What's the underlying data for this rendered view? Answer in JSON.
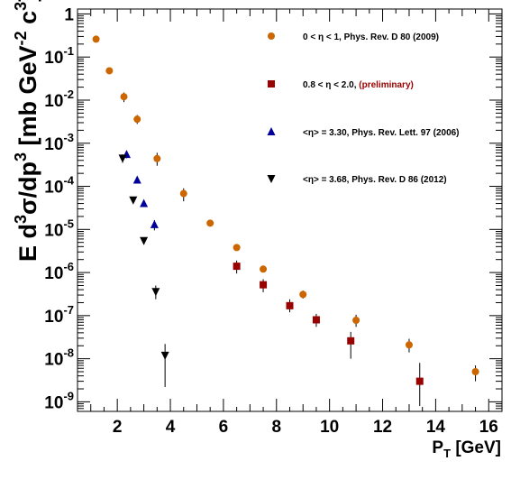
{
  "chart_data": {
    "type": "scatter",
    "title": "",
    "xlabel": "P_T [GeV]",
    "ylabel": "E d^3σ/dp^3 [mb GeV^-2 c^3]",
    "xlabel_parts": {
      "main": "P",
      "sub": "T",
      "unit": "[GeV]"
    },
    "ylabel_parts": {
      "p1": "E d",
      "s1": "3",
      "p2": "σ/dp",
      "s2": "3",
      "p3": " [mb GeV",
      "s3": "-2",
      "p4": " c",
      "s4": "3",
      "p5": "]"
    },
    "xlim": [
      0.5,
      16.5
    ],
    "ylim": [
      6e-10,
      1.3
    ],
    "y_scale": "log",
    "grid": false,
    "legend_position": "top-right",
    "x_ticks": [
      2,
      4,
      6,
      8,
      10,
      12,
      14,
      16
    ],
    "y_ticks": [
      {
        "value": 1e-09,
        "base": "10",
        "exp": "-9"
      },
      {
        "value": 1e-08,
        "base": "10",
        "exp": "-8"
      },
      {
        "value": 1e-07,
        "base": "10",
        "exp": "-7"
      },
      {
        "value": 1e-06,
        "base": "10",
        "exp": "-6"
      },
      {
        "value": 1e-05,
        "base": "10",
        "exp": "-5"
      },
      {
        "value": 0.0001,
        "base": "10",
        "exp": "-4"
      },
      {
        "value": 0.001,
        "base": "10",
        "exp": "-3"
      },
      {
        "value": 0.01,
        "base": "10",
        "exp": "-2"
      },
      {
        "value": 0.1,
        "base": "10",
        "exp": "-1"
      },
      {
        "value": 1,
        "base": "1",
        "exp": ""
      }
    ],
    "series": [
      {
        "name": "0 < η < 1, Phys. Rev. D 80 (2009)",
        "name_parts": [
          "0 < η < 1, Phys. Rev. D 80 (2009)",
          ""
        ],
        "marker": "circle",
        "color": "#cc6600",
        "points": [
          {
            "x": 1.2,
            "y": 0.26,
            "lo": 0.24,
            "hi": 0.28
          },
          {
            "x": 1.7,
            "y": 0.048,
            "lo": 0.044,
            "hi": 0.052
          },
          {
            "x": 2.25,
            "y": 0.012,
            "lo": 0.009,
            "hi": 0.015
          },
          {
            "x": 2.75,
            "y": 0.0036,
            "lo": 0.0028,
            "hi": 0.0045
          },
          {
            "x": 3.5,
            "y": 0.00044,
            "lo": 0.0003,
            "hi": 0.0006
          },
          {
            "x": 4.5,
            "y": 6.8e-05,
            "lo": 4.5e-05,
            "hi": 9e-05
          },
          {
            "x": 5.5,
            "y": 1.4e-05,
            "lo": 1.3e-05,
            "hi": 1.5e-05
          },
          {
            "x": 6.5,
            "y": 3.8e-06,
            "lo": 3.5e-06,
            "hi": 4.2e-06
          },
          {
            "x": 7.5,
            "y": 1.2e-06,
            "lo": 1.1e-06,
            "hi": 1.3e-06
          },
          {
            "x": 9.0,
            "y": 3.1e-07,
            "lo": 2.5e-07,
            "hi": 3.8e-07
          },
          {
            "x": 11.0,
            "y": 7.8e-08,
            "lo": 5.5e-08,
            "hi": 1.05e-07
          },
          {
            "x": 13.0,
            "y": 2.1e-08,
            "lo": 1.4e-08,
            "hi": 2.9e-08
          },
          {
            "x": 15.5,
            "y": 5e-09,
            "lo": 3e-09,
            "hi": 7e-09
          }
        ]
      },
      {
        "name": "0.8 < η < 2.0, (preliminary)",
        "name_parts": [
          "0.8 < η < 2.0, ",
          "(preliminary)"
        ],
        "marker": "square",
        "color": "#990000",
        "points": [
          {
            "x": 6.5,
            "y": 1.4e-06,
            "lo": 9.5e-07,
            "hi": 1.9e-06
          },
          {
            "x": 7.5,
            "y": 5.2e-07,
            "lo": 3.5e-07,
            "hi": 7e-07
          },
          {
            "x": 8.5,
            "y": 1.7e-07,
            "lo": 1.2e-07,
            "hi": 2.4e-07
          },
          {
            "x": 9.5,
            "y": 8e-08,
            "lo": 5.5e-08,
            "hi": 1.1e-07
          },
          {
            "x": 10.8,
            "y": 2.6e-08,
            "lo": 1e-08,
            "hi": 4.2e-08
          },
          {
            "x": 13.4,
            "y": 3e-09,
            "lo": 8e-10,
            "hi": 8e-09
          }
        ]
      },
      {
        "name": "<η> = 3.30, Phys. Rev. Lett. 97 (2006)",
        "name_parts": [
          "<η> = 3.30, Phys. Rev. Lett. 97 (2006)",
          ""
        ],
        "marker": "triangle-up",
        "color": "#000099",
        "points": [
          {
            "x": 2.35,
            "y": 0.00055,
            "lo": 0.00045,
            "hi": 0.00065
          },
          {
            "x": 2.75,
            "y": 0.00014,
            "lo": 0.00012,
            "hi": 0.00016
          },
          {
            "x": 3.0,
            "y": 4e-05,
            "lo": 3.4e-05,
            "hi": 4.6e-05
          },
          {
            "x": 3.4,
            "y": 1.3e-05,
            "lo": 9.5e-06,
            "hi": 1.65e-05
          }
        ]
      },
      {
        "name": "<η> = 3.68, Phys. Rev. D 86 (2012)",
        "name_parts": [
          "<η> = 3.68, Phys. Rev. D 86 (2012)",
          ""
        ],
        "marker": "triangle-down",
        "color": "#000000",
        "points": [
          {
            "x": 2.2,
            "y": 0.00045,
            "lo": 0.00035,
            "hi": 0.00055
          },
          {
            "x": 2.6,
            "y": 4.8e-05,
            "lo": 4e-05,
            "hi": 5.6e-05
          },
          {
            "x": 3.0,
            "y": 5.5e-06,
            "lo": 4.5e-06,
            "hi": 6.5e-06
          },
          {
            "x": 3.45,
            "y": 3.6e-07,
            "lo": 2.4e-07,
            "hi": 5e-07
          },
          {
            "x": 3.8,
            "y": 1.2e-08,
            "lo": 2.2e-09,
            "hi": 2.2e-08
          }
        ]
      }
    ]
  }
}
